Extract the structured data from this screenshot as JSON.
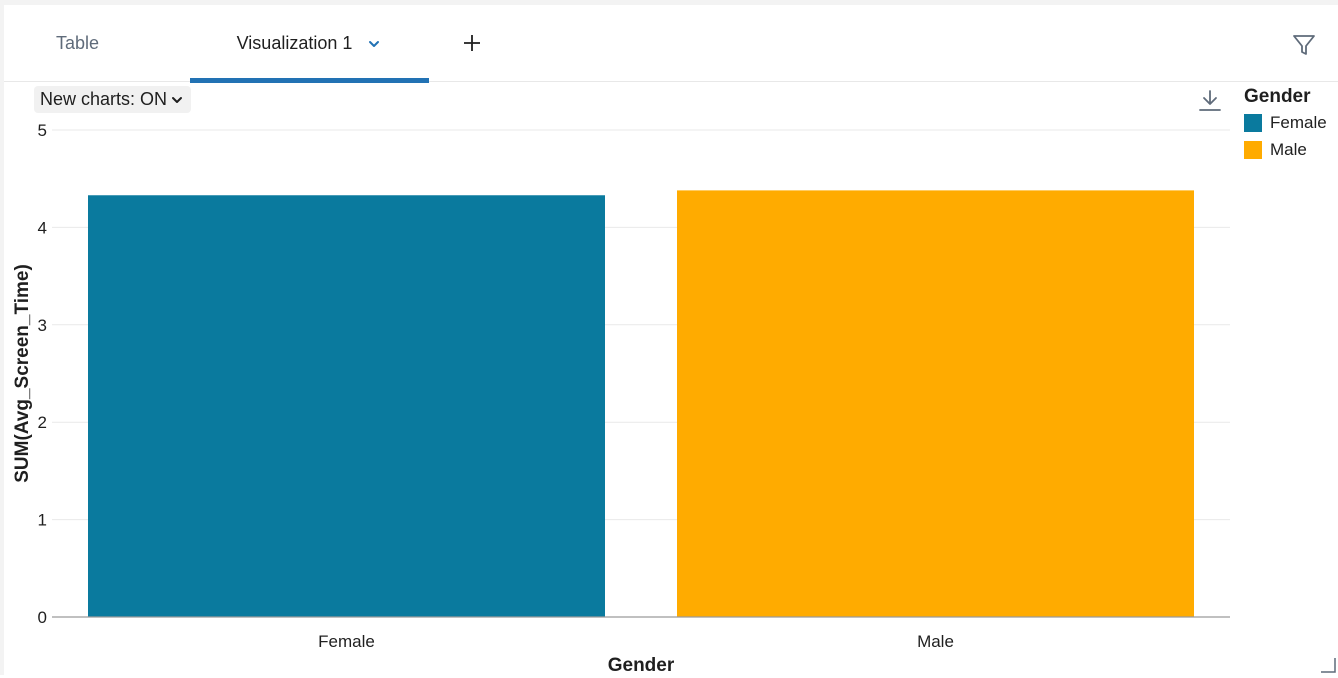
{
  "tabs": {
    "table_label": "Table",
    "viz_label": "Visualization 1"
  },
  "toolbar": {
    "new_charts_label": "New charts: ON"
  },
  "colors": {
    "accent": "#2272b4",
    "female": "#0a7a9e",
    "male": "#ffab00"
  },
  "legend": {
    "title": "Gender",
    "items": [
      "Female",
      "Male"
    ]
  },
  "icons": {
    "add": "plus-icon",
    "filter": "filter-icon",
    "download": "download-icon",
    "dropdown": "chevron-down-icon",
    "resize": "resize-handle-icon"
  },
  "chart_data": {
    "type": "bar",
    "categories": [
      "Female",
      "Male"
    ],
    "values": [
      4.33,
      4.38
    ],
    "xlabel": "Gender",
    "ylabel": "SUM(Avg_Screen_Time)",
    "ylim": [
      0,
      5
    ],
    "yticks": [
      0,
      1,
      2,
      3,
      4,
      5
    ],
    "grid": true,
    "legend_placement": "top-right"
  }
}
